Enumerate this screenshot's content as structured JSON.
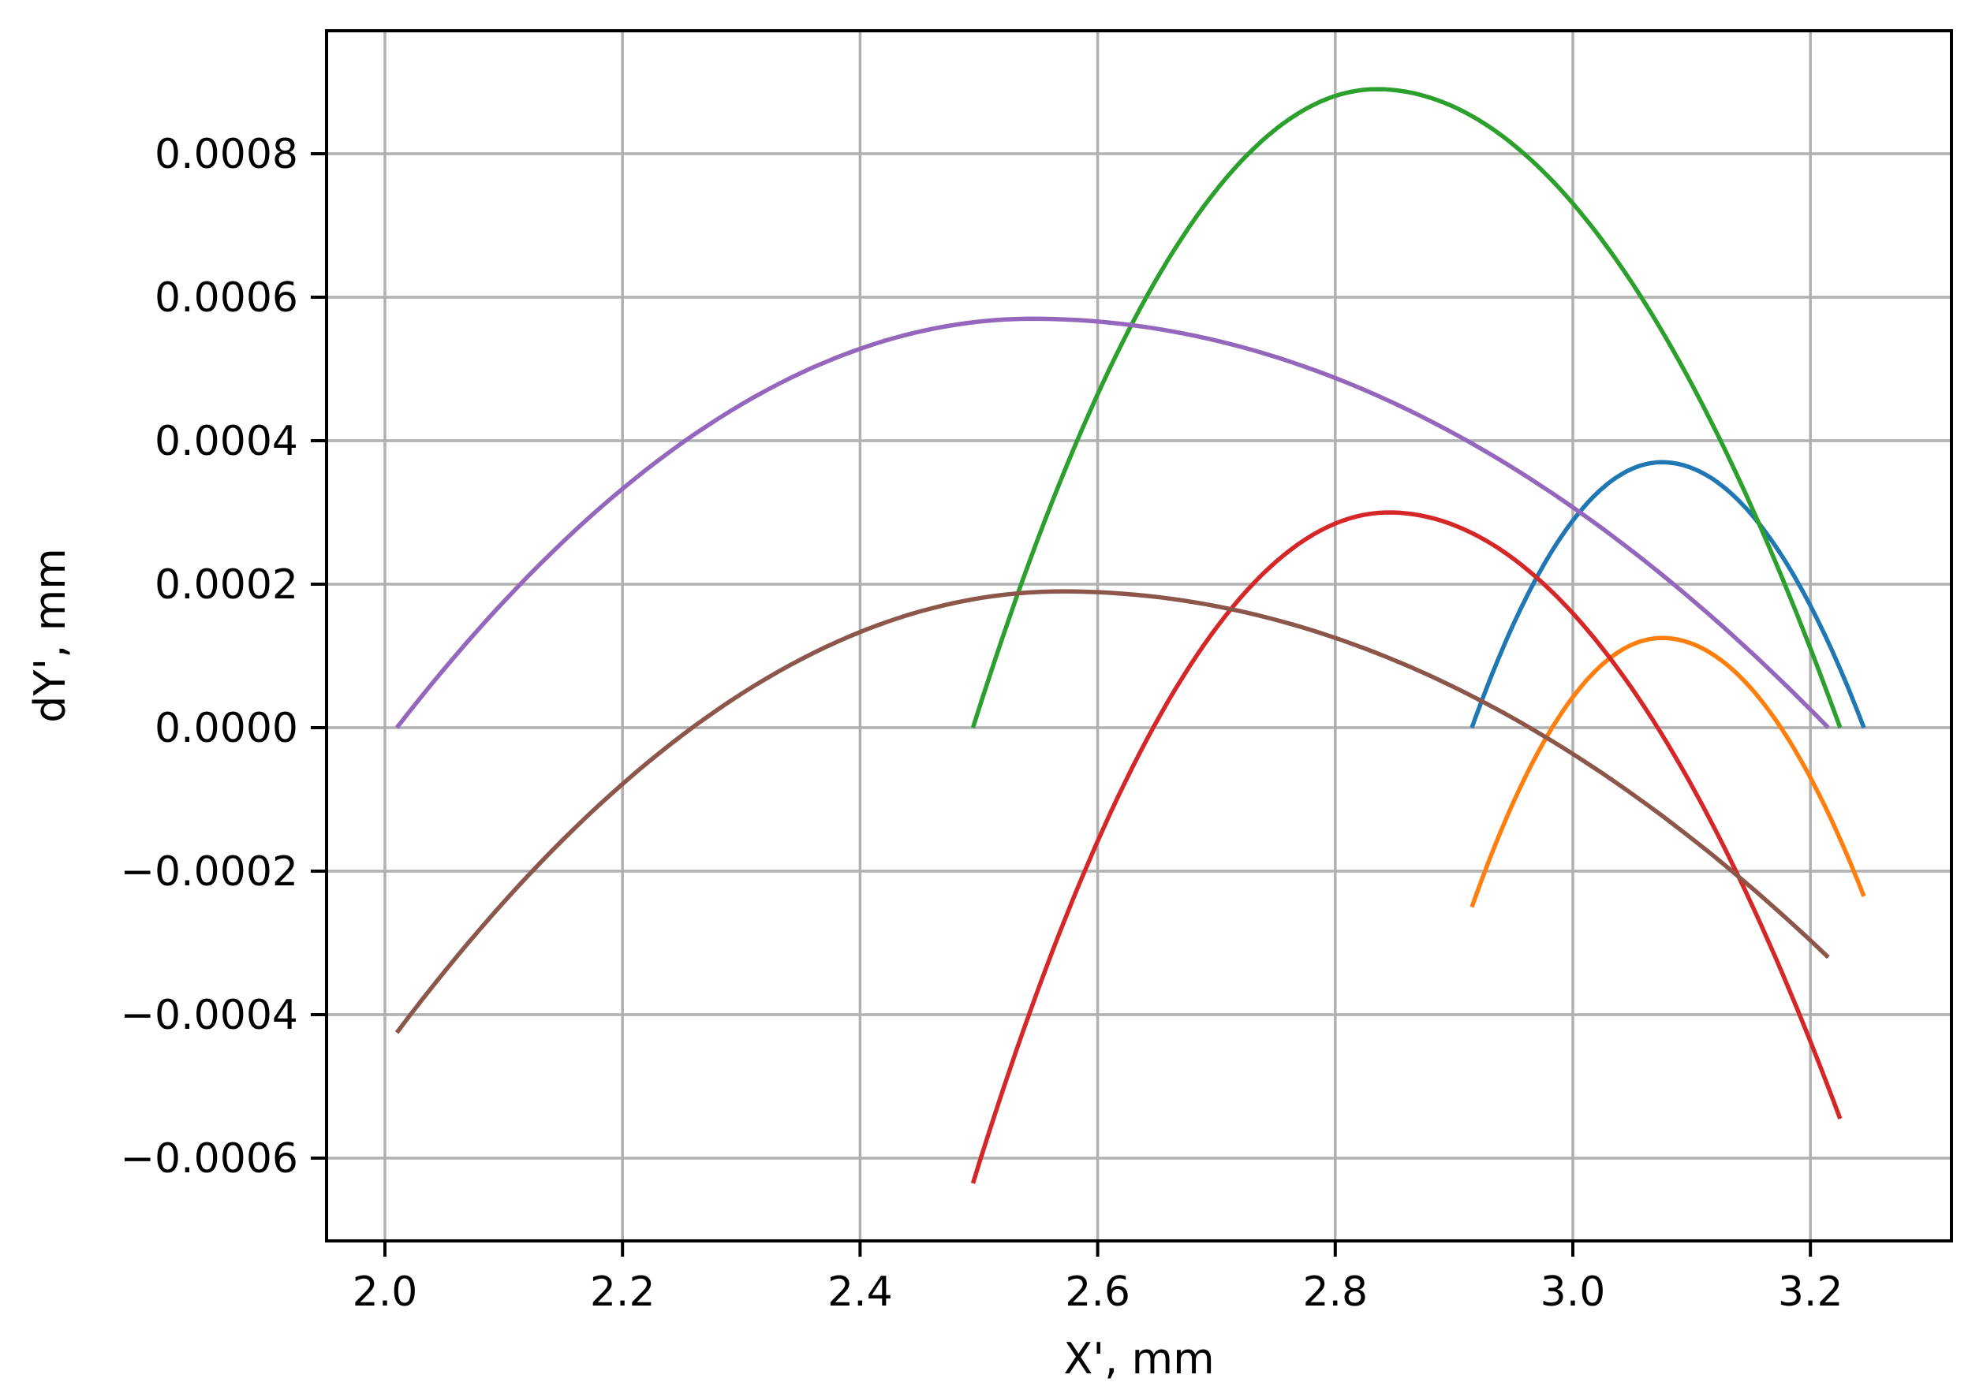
{
  "chart_data": {
    "type": "line",
    "title": "",
    "xlabel": "X', mm",
    "ylabel": "dY', mm",
    "xlim": [
      1.955,
      3.307
    ],
    "ylim": [
      -0.00071,
      0.00097
    ],
    "grid": true,
    "legend": null,
    "x_ticks": [
      2.0,
      2.2,
      2.4,
      2.6,
      2.8,
      3.0,
      3.2
    ],
    "x_tick_labels": [
      "2.0",
      "2.2",
      "2.4",
      "2.6",
      "2.8",
      "3.0",
      "3.2"
    ],
    "y_ticks": [
      -0.0006,
      -0.0004,
      -0.0002,
      0.0,
      0.0002,
      0.0004,
      0.0006,
      0.0008
    ],
    "y_tick_labels": [
      "−0.0006",
      "−0.0004",
      "−0.0002",
      "0.0000",
      "0.0002",
      "0.0004",
      "0.0006",
      "0.0008"
    ],
    "series": [
      {
        "name": "blue",
        "color": "#1f77b4",
        "start": [
          2.915,
          0.0
        ],
        "peak": [
          3.075,
          0.00037
        ],
        "end": [
          3.245,
          0.0
        ]
      },
      {
        "name": "orange",
        "color": "#ff7f0e",
        "start": [
          2.915,
          -0.00025
        ],
        "peak": [
          3.075,
          0.000125
        ],
        "end": [
          3.245,
          -0.000235
        ]
      },
      {
        "name": "green",
        "color": "#2ca02c",
        "start": [
          2.495,
          0.0
        ],
        "peak": [
          2.835,
          0.00089
        ],
        "end": [
          3.225,
          0.0
        ]
      },
      {
        "name": "red",
        "color": "#d62728",
        "start": [
          2.495,
          -0.000635
        ],
        "peak": [
          2.845,
          0.0003
        ],
        "end": [
          3.225,
          -0.000545
        ]
      },
      {
        "name": "purple",
        "color": "#9467bd",
        "start": [
          2.01,
          0.0
        ],
        "peak": [
          2.545,
          0.00057
        ],
        "end": [
          3.215,
          0.0
        ]
      },
      {
        "name": "brown",
        "color": "#8c564b",
        "start": [
          2.01,
          -0.000425
        ],
        "peak": [
          2.57,
          0.00019
        ],
        "end": [
          3.215,
          -0.00032
        ]
      }
    ]
  }
}
